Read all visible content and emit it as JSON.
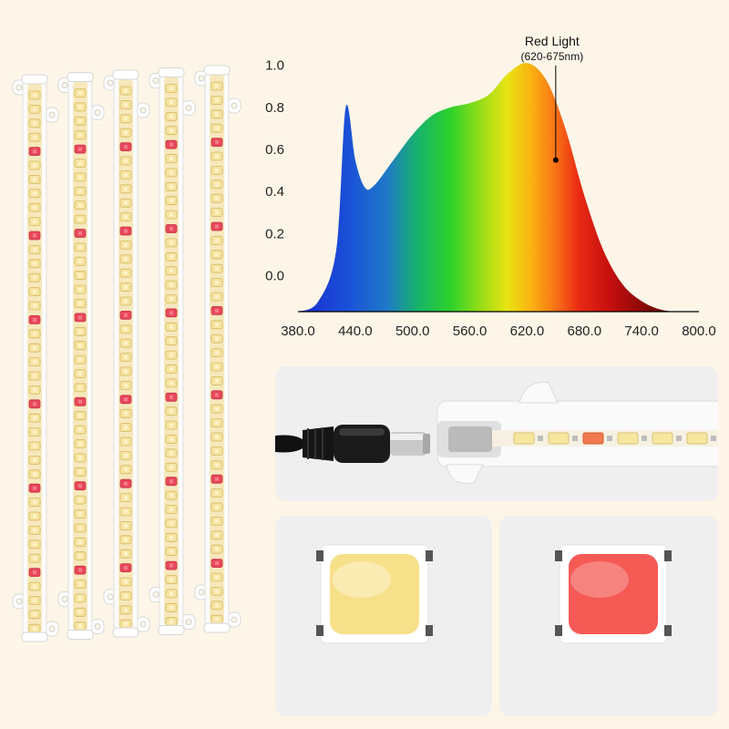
{
  "chart_data": {
    "type": "area",
    "x": [
      380,
      400,
      420,
      430,
      440,
      450,
      460,
      480,
      500,
      520,
      540,
      560,
      580,
      600,
      620,
      640,
      660,
      680,
      700,
      720,
      740,
      760,
      780,
      800
    ],
    "values": [
      -0.17,
      -0.13,
      0.12,
      0.8,
      0.55,
      0.42,
      0.43,
      0.55,
      0.67,
      0.76,
      0.8,
      0.82,
      0.86,
      0.96,
      1.01,
      0.93,
      0.7,
      0.38,
      0.12,
      -0.04,
      -0.12,
      -0.16,
      -0.17,
      -0.17
    ],
    "x_ticks": [
      "380.0",
      "440.0",
      "500.0",
      "560.0",
      "620.0",
      "680.0",
      "740.0",
      "800.0"
    ],
    "y_ticks": [
      "0.0",
      "0.2",
      "0.4",
      "0.6",
      "0.8",
      "1.0"
    ],
    "xlim": [
      380,
      800
    ],
    "ylim": [
      -0.17,
      1.05
    ],
    "grid": false,
    "annotation": {
      "title": "Red Light",
      "subtitle": "(620-675nm)",
      "x": 650,
      "y": 0.55
    }
  },
  "product": {
    "strip_count": 5,
    "strip_led_pattern": "warm white with a red LED every sixth position",
    "colors": {
      "background": "#fdf6e8",
      "warm_led": "#f4d98a",
      "red_led": "#e8485a",
      "panel": "#efefef"
    },
    "chips": [
      {
        "name": "warm-white-led-chip",
        "color": "#f7e08a"
      },
      {
        "name": "red-led-chip",
        "color": "#f55a55"
      }
    ]
  }
}
